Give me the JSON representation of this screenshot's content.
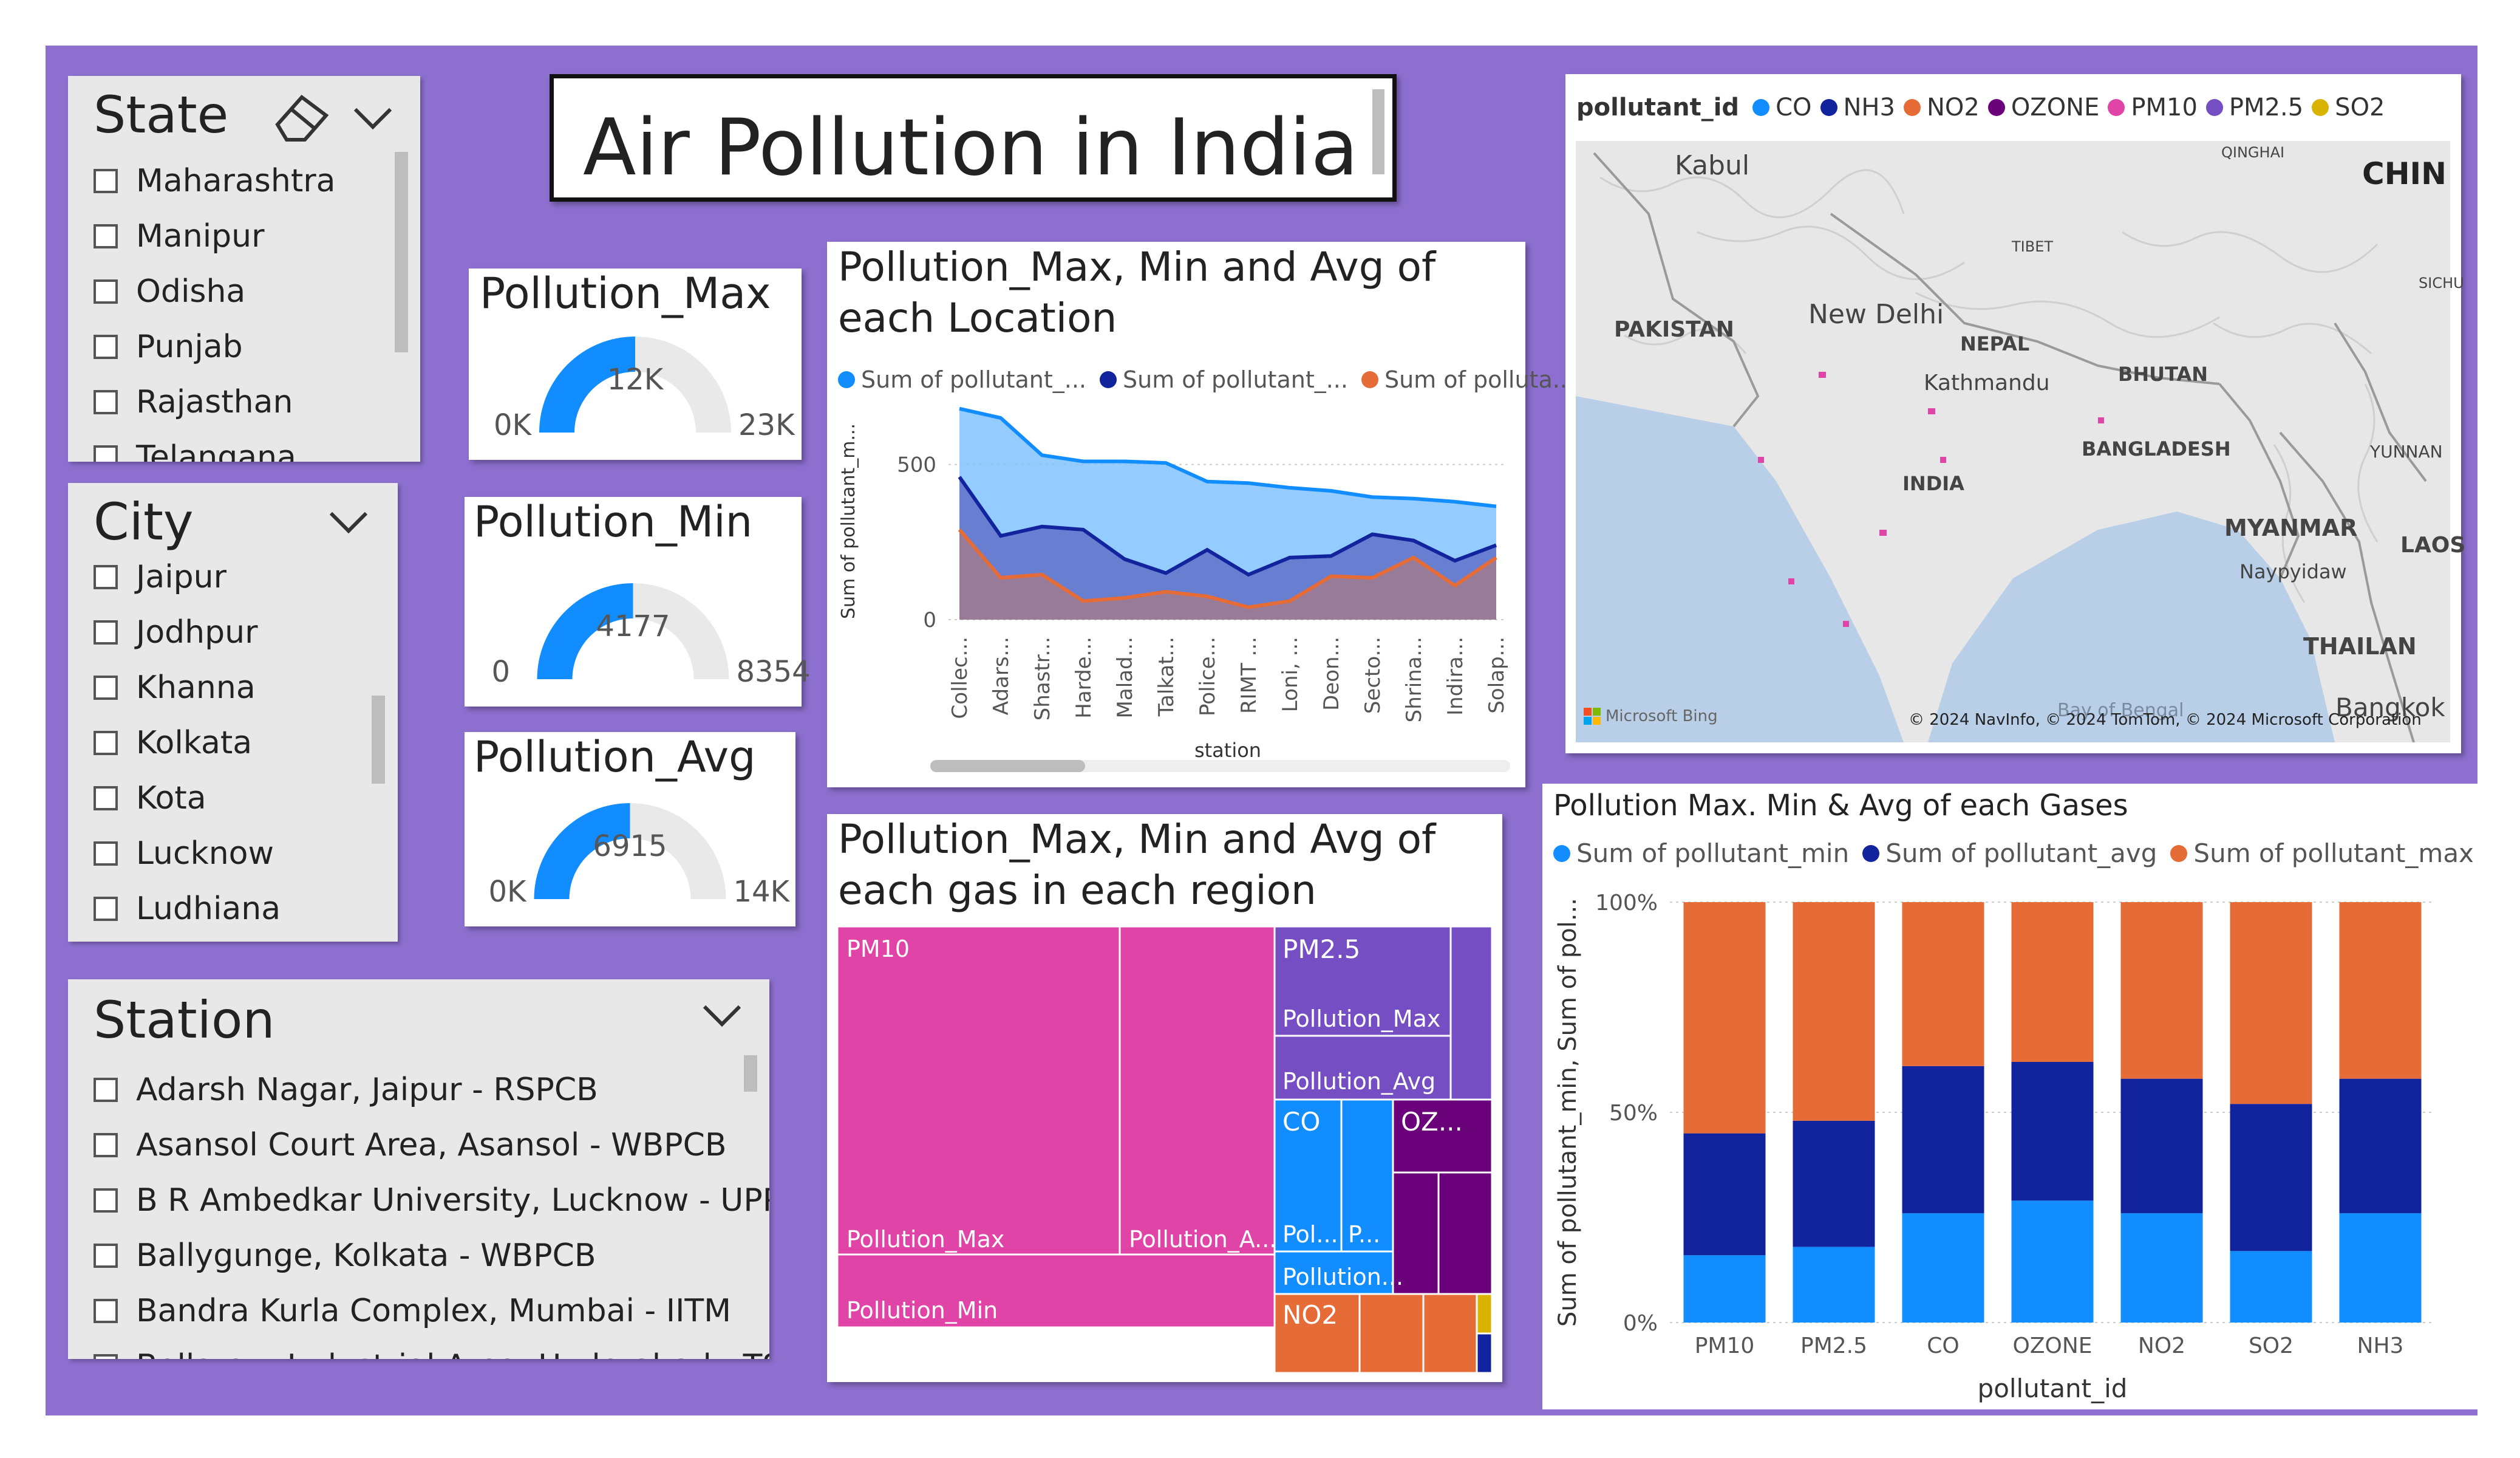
{
  "page_title": "Air Pollution in India",
  "colors": {
    "background": "#8d6fcf",
    "min": "#118dff",
    "avg": "#12239e",
    "max": "#e66c37",
    "gauge": "#118dff"
  },
  "state_slicer": {
    "title": "State",
    "items": [
      "Maharashtra",
      "Manipur",
      "Odisha",
      "Punjab",
      "Rajasthan",
      "Telangana"
    ],
    "icons": [
      "eraser-icon",
      "chevron-down-icon"
    ]
  },
  "city_slicer": {
    "title": "City",
    "items": [
      "Jaipur",
      "Jodhpur",
      "Khanna",
      "Kolkata",
      "Kota",
      "Lucknow",
      "Ludhiana"
    ],
    "icons": [
      "chevron-down-icon"
    ]
  },
  "station_slicer": {
    "title": "Station",
    "items": [
      "Adarsh Nagar, Jaipur - RSPCB",
      "Asansol Court Area, Asansol - WBPCB",
      "B R Ambedkar University, Lucknow - UPPCB",
      "Ballygunge, Kolkata - WBPCB",
      "Bandra Kurla Complex, Mumbai - IITM",
      "Bollaram Industrial Area, Hyderabad - TSPCB"
    ],
    "icons": [
      "chevron-down-icon"
    ]
  },
  "gauges": [
    {
      "title": "Pollution_Max",
      "min_label": "0K",
      "value_label": "12K",
      "max_label": "23K",
      "fraction": 0.5
    },
    {
      "title": "Pollution_Min",
      "min_label": "0",
      "value_label": "4177",
      "max_label": "8354",
      "fraction": 0.5
    },
    {
      "title": "Pollution_Avg",
      "min_label": "0K",
      "value_label": "6915",
      "max_label": "14K",
      "fraction": 0.5
    }
  ],
  "area_chart": {
    "title": "Pollution_Max, Min and Avg of each Location",
    "legend": [
      "Sum of pollutant_...",
      "Sum of pollutant_...",
      "Sum of polluta..."
    ],
    "ylabel": "Sum of pollutant_m...",
    "xlabel": "station",
    "y_ticks": [
      "0",
      "500"
    ]
  },
  "treemap": {
    "title": "Pollution_Max, Min and Avg of each gas in each region",
    "labels": {
      "pm10": "PM10",
      "pm10_max": "Pollution_Max",
      "pm10_avg": "Pollution_A...",
      "pm10_min": "Pollution_Min",
      "pm25": "PM2.5",
      "pm25_max": "Pollution_Max",
      "pm25_avg": "Pollution_Avg",
      "co": "CO",
      "co_a": "Pol...",
      "co_b": "P...",
      "co_c": "Pollution...",
      "ozone": "OZ...",
      "no2": "NO2"
    }
  },
  "map": {
    "legend_title": "pollutant_id",
    "legend": [
      "CO",
      "NH3",
      "NO2",
      "OZONE",
      "PM10",
      "PM2.5",
      "SO2"
    ],
    "legend_colors": [
      "#118dff",
      "#12239e",
      "#e66c37",
      "#6b007b",
      "#e044a7",
      "#744ec2",
      "#d9b300"
    ],
    "places": [
      "Kabul",
      "CHIN",
      "PAKISTAN",
      "New Delhi",
      "NEPAL",
      "Kathmandu",
      "BHUTAN",
      "BANGLADESH",
      "INDIA",
      "MYANMAR",
      "Naypyidaw",
      "LAOS",
      "THAILAN",
      "Bangkok",
      "QINGHAI",
      "TIBET",
      "SICHU",
      "YUNNAN",
      "Bay of Bengal"
    ],
    "brand": "Microsoft Bing",
    "attribution": "© 2024 NavInfo, © 2024 TomTom, © 2024 Microsoft Corporation"
  },
  "chart_data": [
    {
      "type": "area",
      "title": "Pollution_Max, Min and Avg of each Location",
      "xlabel": "station",
      "ylabel": "Sum of pollutant_m...",
      "ylim": [
        0,
        650
      ],
      "categories": [
        "Collec...",
        "Adars...",
        "Shastr...",
        "Harde...",
        "Malad...",
        "Talkat...",
        "Police...",
        "RIMT ...",
        "Loni, ...",
        "Deon...",
        "Secto...",
        "Shrina...",
        "Indira...",
        "Solap..."
      ],
      "series": [
        {
          "name": "Sum of pollutant_...",
          "values": [
            680,
            650,
            530,
            510,
            510,
            505,
            445,
            440,
            425,
            415,
            395,
            390,
            380,
            365
          ]
        },
        {
          "name": "Sum of pollutant_...",
          "values": [
            460,
            270,
            300,
            290,
            195,
            150,
            225,
            145,
            200,
            205,
            275,
            255,
            190,
            240
          ]
        },
        {
          "name": "Sum of polluta...",
          "values": [
            290,
            135,
            145,
            60,
            70,
            90,
            75,
            40,
            60,
            140,
            135,
            200,
            110,
            200
          ]
        }
      ]
    },
    {
      "type": "bar",
      "stacked": "100%",
      "title": "Pollution Max. Min & Avg of each Gases",
      "xlabel": "pollutant_id",
      "ylabel": "Sum of pollutant_min, Sum of pol...",
      "y_ticks": [
        "0%",
        "50%",
        "100%"
      ],
      "categories": [
        "PM10",
        "PM2.5",
        "CO",
        "OZONE",
        "NO2",
        "SO2",
        "NH3"
      ],
      "series": [
        {
          "name": "Sum of pollutant_min",
          "values": [
            16,
            18,
            26,
            29,
            26,
            17,
            26
          ]
        },
        {
          "name": "Sum of pollutant_avg",
          "values": [
            29,
            30,
            35,
            33,
            32,
            35,
            32
          ]
        },
        {
          "name": "Sum of pollutant_max",
          "values": [
            55,
            52,
            39,
            38,
            42,
            48,
            42
          ]
        }
      ]
    }
  ]
}
